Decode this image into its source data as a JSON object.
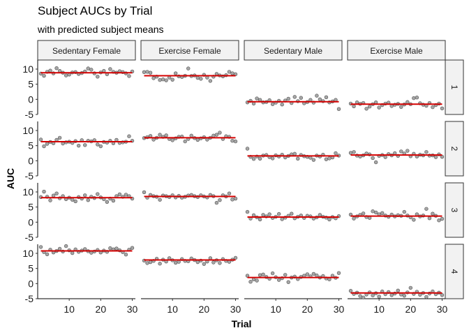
{
  "chart_data": {
    "type": "scatter",
    "title": "Subject AUCs by Trial",
    "subtitle": "with predicted subject means",
    "xlabel": "Trial",
    "ylabel": "AUC",
    "xlim": [
      0,
      31
    ],
    "ylim": [
      -5,
      13
    ],
    "x_ticks": [
      10,
      20,
      30
    ],
    "y_ticks": [
      -5,
      0,
      5,
      10
    ],
    "columns": [
      "Sedentary Female",
      "Exercise Female",
      "Sedentary Male",
      "Exercise Male"
    ],
    "rows": [
      "1",
      "2",
      "3",
      "4"
    ],
    "trials": [
      1,
      2,
      3,
      4,
      5,
      6,
      7,
      8,
      9,
      10,
      11,
      12,
      13,
      14,
      15,
      16,
      17,
      18,
      19,
      20,
      21,
      22,
      23,
      24,
      25,
      26,
      27,
      28,
      29,
      30
    ],
    "point_color": "#a6a6a6",
    "mean_color": "#d40000",
    "panels": [
      [
        {
          "mean": 8.8,
          "values": [
            8.5,
            7.8,
            9.1,
            9.5,
            8.6,
            10.3,
            9.4,
            8.8,
            7.9,
            8.2,
            8.9,
            9.0,
            8.4,
            8.7,
            9.2,
            10.2,
            9.8,
            8.6,
            7.5,
            8.9,
            9.4,
            8.3,
            10.0,
            9.1,
            8.8,
            9.3,
            9.0,
            8.6,
            7.7,
            9.2
          ]
        },
        {
          "mean": 7.8,
          "values": [
            9.0,
            9.1,
            8.8,
            7.0,
            7.5,
            6.4,
            6.6,
            6.3,
            7.2,
            6.5,
            8.6,
            7.6,
            7.4,
            7.8,
            10.2,
            7.7,
            7.9,
            7.1,
            6.8,
            8.1,
            7.2,
            6.1,
            7.5,
            8.4,
            7.9,
            7.6,
            8.0,
            9.1,
            8.6,
            8.3
          ]
        },
        {
          "mean": -0.8,
          "values": [
            -1.0,
            -0.5,
            -1.4,
            0.3,
            -0.2,
            -1.0,
            -0.9,
            -0.3,
            -1.6,
            -1.1,
            -0.5,
            -1.7,
            -0.4,
            0.2,
            -1.2,
            0.8,
            -0.6,
            0.5,
            -1.3,
            -0.9,
            -0.2,
            -1.1,
            1.2,
            0.0,
            -0.6,
            0.7,
            -1.0,
            -0.7,
            -0.2,
            -3.2
          ]
        },
        {
          "mean": -1.6,
          "values": [
            -1.4,
            -2.3,
            -1.0,
            -1.5,
            -1.2,
            -3.1,
            -2.4,
            -1.6,
            -1.0,
            -2.7,
            -1.9,
            -1.4,
            -1.1,
            -2.2,
            -1.8,
            -1.5,
            -2.5,
            -1.7,
            -0.9,
            -1.6,
            0.4,
            0.6,
            -1.3,
            -1.8,
            -2.1,
            -1.2,
            -2.6,
            -1.9,
            -1.4,
            -3.0
          ]
        }
      ],
      [
        {
          "mean": 6.3,
          "values": [
            7.0,
            4.8,
            5.6,
            6.2,
            5.8,
            6.9,
            7.6,
            5.7,
            6.1,
            6.3,
            5.9,
            6.5,
            5.0,
            6.8,
            5.2,
            6.6,
            6.4,
            6.8,
            5.4,
            4.8,
            6.2,
            6.0,
            6.6,
            5.8,
            6.9,
            5.9,
            6.1,
            6.3,
            8.1,
            6.6
          ]
        },
        {
          "mean": 7.6,
          "values": [
            7.5,
            7.8,
            8.2,
            7.0,
            7.6,
            8.6,
            7.9,
            8.4,
            7.2,
            6.8,
            7.4,
            7.9,
            8.0,
            6.4,
            7.2,
            8.3,
            7.5,
            6.9,
            7.4,
            7.8,
            7.0,
            7.6,
            8.3,
            8.6,
            9.3,
            7.2,
            8.1,
            7.9,
            6.6,
            6.4
          ]
        },
        {
          "mean": 1.6,
          "values": [
            4.0,
            1.3,
            0.6,
            1.4,
            0.7,
            1.7,
            1.9,
            1.2,
            0.8,
            1.8,
            1.4,
            2.0,
            1.1,
            1.6,
            2.1,
            2.3,
            0.7,
            1.9,
            1.5,
            1.3,
            1.0,
            0.3,
            1.7,
            1.4,
            2.0,
            0.5,
            0.8,
            1.1,
            2.5,
            1.7
          ]
        },
        {
          "mean": 1.9,
          "values": [
            2.6,
            2.9,
            1.7,
            1.4,
            1.8,
            2.4,
            2.1,
            0.9,
            -0.5,
            1.6,
            1.9,
            1.2,
            2.2,
            1.8,
            2.5,
            1.6,
            3.1,
            2.4,
            3.3,
            1.5,
            2.3,
            1.4,
            2.0,
            1.8,
            2.9,
            1.7,
            1.8,
            1.2,
            2.1,
            1.3
          ]
        }
      ],
      [
        {
          "mean": 8.1,
          "values": [
            8.3,
            10.1,
            8.4,
            7.2,
            8.8,
            9.5,
            7.9,
            8.6,
            7.6,
            8.1,
            7.4,
            6.9,
            8.3,
            7.8,
            8.9,
            7.3,
            8.4,
            8.0,
            9.3,
            8.2,
            7.6,
            6.7,
            7.8,
            7.1,
            8.6,
            9.2,
            8.4,
            9.1,
            8.6,
            7.8
          ]
        },
        {
          "mean": 8.5,
          "values": [
            9.9,
            8.1,
            9.0,
            8.6,
            8.4,
            7.4,
            8.8,
            8.6,
            8.3,
            8.9,
            8.2,
            8.7,
            8.1,
            8.4,
            8.8,
            9.0,
            8.6,
            8.3,
            8.9,
            8.5,
            8.2,
            9.0,
            8.6,
            6.4,
            7.3,
            8.9,
            8.5,
            9.5,
            7.5,
            7.8
          ]
        },
        {
          "mean": 1.7,
          "values": [
            3.4,
            1.2,
            2.3,
            1.6,
            0.9,
            2.4,
            1.9,
            2.6,
            1.4,
            1.8,
            2.7,
            1.0,
            1.5,
            2.1,
            2.8,
            1.3,
            1.8,
            2.2,
            1.4,
            2.1,
            1.9,
            1.2,
            1.6,
            2.4,
            1.8,
            1.5,
            0.9,
            1.7,
            1.3,
            2.0
          ]
        },
        {
          "mean": 2.0,
          "values": [
            2.5,
            1.2,
            1.9,
            2.4,
            2.9,
            1.7,
            1.4,
            3.6,
            3.2,
            2.6,
            3.0,
            2.2,
            1.8,
            2.5,
            1.9,
            2.3,
            2.1,
            3.4,
            2.2,
            1.6,
            0.8,
            2.6,
            1.9,
            2.2,
            4.4,
            1.3,
            2.8,
            2.1,
            0.6,
            1.1
          ]
        }
      ],
      [
        {
          "mean": 10.8,
          "values": [
            12.1,
            10.4,
            9.7,
            11.2,
            10.3,
            10.8,
            11.5,
            10.6,
            12.4,
            11.0,
            10.1,
            11.3,
            10.5,
            10.9,
            11.4,
            10.7,
            10.2,
            10.6,
            11.1,
            10.3,
            10.9,
            10.5,
            11.7,
            11.3,
            11.6,
            11.0,
            10.4,
            9.6,
            11.2,
            11.8
          ]
        },
        {
          "mean": 7.8,
          "values": [
            7.6,
            6.8,
            7.1,
            7.5,
            8.2,
            6.6,
            7.9,
            7.3,
            8.4,
            7.7,
            6.9,
            7.2,
            8.1,
            7.5,
            7.4,
            8.3,
            7.8,
            7.1,
            7.6,
            6.5,
            7.3,
            8.4,
            7.0,
            7.7,
            6.8,
            8.1,
            7.5,
            7.2,
            7.9,
            8.5
          ]
        },
        {
          "mean": 2.0,
          "values": [
            2.6,
            0.6,
            1.4,
            1.0,
            2.8,
            3.0,
            2.2,
            1.6,
            3.4,
            2.1,
            1.2,
            1.8,
            2.9,
            0.5,
            2.0,
            2.3,
            1.5,
            2.2,
            2.6,
            3.1,
            2.4,
            3.2,
            2.7,
            2.0,
            2.5,
            1.7,
            1.4,
            2.6,
            1.9,
            3.5
          ]
        },
        {
          "mean": -3.1,
          "values": [
            -2.4,
            -3.4,
            -3.0,
            -4.1,
            -4.6,
            -3.6,
            -2.9,
            -3.9,
            -3.2,
            -4.3,
            -2.6,
            -3.5,
            -2.8,
            -3.8,
            -3.3,
            -2.3,
            -3.6,
            -4.0,
            -2.9,
            -1.4,
            -3.4,
            -2.7,
            -3.7,
            -3.1,
            -4.4,
            -3.3,
            -2.6,
            -3.5,
            -3.0,
            -3.8
          ]
        }
      ]
    ]
  }
}
